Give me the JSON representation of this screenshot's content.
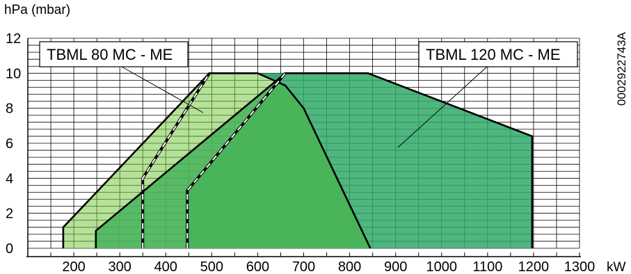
{
  "chart_data": {
    "type": "area",
    "ylabel": "hPa (mbar)",
    "xlabel": "kW",
    "xlim": [
      100,
      1300
    ],
    "ylim": [
      0,
      12
    ],
    "x_ticks": [
      200,
      300,
      400,
      500,
      600,
      700,
      800,
      900,
      1000,
      1100,
      1200,
      1300
    ],
    "y_ticks": [
      0,
      2,
      4,
      6,
      8,
      10,
      12
    ],
    "grid": true,
    "series": [
      {
        "name": "TBML 80 MC - ME",
        "color": "#7ac943",
        "outer": [
          [
            177,
            0
          ],
          [
            177,
            1.2
          ],
          [
            495,
            10
          ],
          [
            600,
            10
          ],
          [
            660,
            9.3
          ],
          [
            700,
            8
          ],
          [
            845,
            0
          ]
        ],
        "inner": [
          [
            350,
            0
          ],
          [
            350,
            4
          ],
          [
            495,
            10
          ]
        ]
      },
      {
        "name": "TBML 120 MC - ME",
        "color": "#2ea866",
        "outer": [
          [
            248,
            0
          ],
          [
            248,
            1
          ],
          [
            660,
            10
          ],
          [
            840,
            10
          ],
          [
            1197,
            6.4
          ],
          [
            1197,
            0
          ]
        ],
        "inner": [
          [
            447,
            0
          ],
          [
            447,
            3.3
          ],
          [
            660,
            10
          ]
        ]
      }
    ],
    "annotations": [
      "0002922743A"
    ]
  }
}
